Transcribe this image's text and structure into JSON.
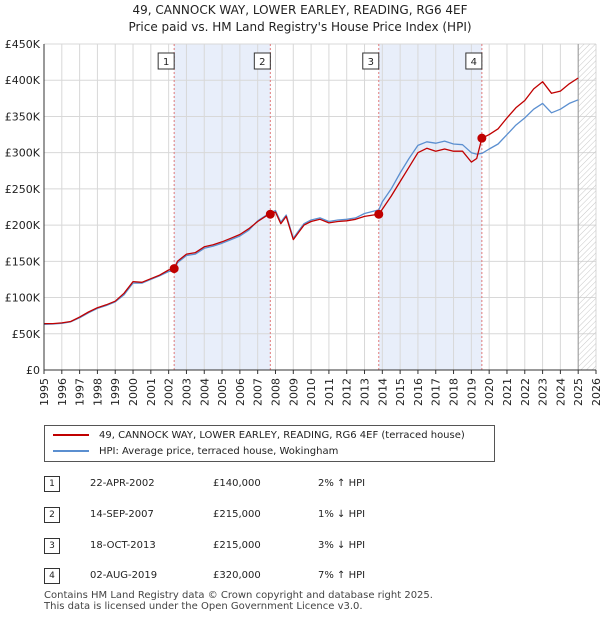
{
  "title_line1": "49, CANNOCK WAY, LOWER EARLEY, READING, RG6 4EF",
  "title_line2": "Price paid vs. HM Land Registry's House Price Index (HPI)",
  "legend": {
    "property": "49, CANNOCK WAY, LOWER EARLEY, READING, RG6 4EF (terraced house)",
    "hpi": "HPI: Average price, terraced house, Wokingham"
  },
  "colors": {
    "property": "#c00000",
    "hpi": "#5b8fd0",
    "shade": "#e8eefa",
    "grid": "#d8d8d8",
    "sale_line": "#e07a7a"
  },
  "transactions": [
    {
      "id": "1",
      "date": "22-APR-2002",
      "price": "£140,000",
      "hpi": "2% ↑ HPI"
    },
    {
      "id": "2",
      "date": "14-SEP-2007",
      "price": "£215,000",
      "hpi": "1% ↓ HPI"
    },
    {
      "id": "3",
      "date": "18-OCT-2013",
      "price": "£215,000",
      "hpi": "3% ↓ HPI"
    },
    {
      "id": "4",
      "date": "02-AUG-2019",
      "price": "£320,000",
      "hpi": "7% ↑ HPI"
    }
  ],
  "footer": {
    "line1": "Contains HM Land Registry data © Crown copyright and database right 2025.",
    "line2": "This data is licensed under the Open Government Licence v3.0."
  },
  "chart_data": {
    "type": "line",
    "title": "49, CANNOCK WAY, LOWER EARLEY, READING, RG6 4EF — Price paid vs. HM Land Registry's House Price Index (HPI)",
    "xlabel": "",
    "ylabel": "",
    "xlim": [
      1995,
      2026
    ],
    "ylim": [
      0,
      450000
    ],
    "y_ticks": [
      0,
      50000,
      100000,
      150000,
      200000,
      250000,
      300000,
      350000,
      400000,
      450000
    ],
    "y_tick_labels": [
      "£0",
      "£50K",
      "£100K",
      "£150K",
      "£200K",
      "£250K",
      "£300K",
      "£350K",
      "£400K",
      "£450K"
    ],
    "x_ticks": [
      1995,
      1996,
      1997,
      1998,
      1999,
      2000,
      2001,
      2002,
      2003,
      2004,
      2005,
      2006,
      2007,
      2008,
      2009,
      2010,
      2011,
      2012,
      2013,
      2014,
      2015,
      2016,
      2017,
      2018,
      2019,
      2020,
      2021,
      2022,
      2023,
      2024,
      2025,
      2026
    ],
    "x_tick_labels": [
      "1995",
      "1996",
      "1997",
      "1998",
      "1999",
      "2000",
      "2001",
      "2002",
      "2003",
      "2004",
      "2005",
      "2006",
      "2007",
      "2008",
      "2009",
      "2010",
      "2011",
      "2012",
      "2013",
      "2014",
      "2015",
      "2016",
      "2017",
      "2018",
      "2019",
      "2020",
      "2021",
      "2022",
      "2023",
      "2024",
      "2025",
      "2026"
    ],
    "shaded_ranges": [
      [
        2002.31,
        2007.71
      ],
      [
        2013.8,
        2019.59
      ]
    ],
    "hatched_after": 2025.0,
    "sales": [
      {
        "label": "1",
        "x": 2002.31,
        "y": 140000
      },
      {
        "label": "2",
        "x": 2007.71,
        "y": 215000
      },
      {
        "label": "3",
        "x": 2013.8,
        "y": 215000
      },
      {
        "label": "4",
        "x": 2019.59,
        "y": 320000
      }
    ],
    "series": [
      {
        "name": "49, CANNOCK WAY, LOWER EARLEY, READING, RG6 4EF (terraced house)",
        "color": "#c00000",
        "x": [
          1995.0,
          1995.5,
          1996.0,
          1996.5,
          1997.0,
          1997.5,
          1998.0,
          1998.5,
          1999.0,
          1999.5,
          2000.0,
          2000.5,
          2001.0,
          2001.5,
          2002.0,
          2002.31,
          2002.5,
          2003.0,
          2003.5,
          2004.0,
          2004.5,
          2005.0,
          2005.5,
          2006.0,
          2006.5,
          2007.0,
          2007.5,
          2007.71,
          2008.0,
          2008.3,
          2008.6,
          2009.0,
          2009.3,
          2009.6,
          2010.0,
          2010.5,
          2011.0,
          2011.5,
          2012.0,
          2012.5,
          2013.0,
          2013.5,
          2013.8,
          2014.0,
          2014.5,
          2015.0,
          2015.5,
          2016.0,
          2016.5,
          2017.0,
          2017.5,
          2018.0,
          2018.5,
          2019.0,
          2019.3,
          2019.59,
          2020.0,
          2020.5,
          2021.0,
          2021.5,
          2022.0,
          2022.5,
          2023.0,
          2023.5,
          2024.0,
          2024.5,
          2025.0
        ],
        "y": [
          64000,
          64000,
          65000,
          67000,
          73000,
          80000,
          86000,
          90000,
          95000,
          106000,
          122000,
          121000,
          126000,
          131000,
          138000,
          140000,
          150000,
          160000,
          162000,
          170000,
          173000,
          177000,
          182000,
          187000,
          195000,
          205000,
          213000,
          215000,
          218000,
          202000,
          212000,
          180000,
          190000,
          200000,
          205000,
          208000,
          203000,
          205000,
          206000,
          208000,
          212000,
          214000,
          215000,
          222000,
          240000,
          260000,
          280000,
          300000,
          306000,
          302000,
          305000,
          302000,
          302000,
          287000,
          292000,
          320000,
          325000,
          333000,
          348000,
          362000,
          372000,
          388000,
          398000,
          382000,
          385000,
          395000,
          403000
        ]
      },
      {
        "name": "HPI: Average price, terraced house, Wokingham",
        "color": "#5b8fd0",
        "x": [
          1995.0,
          1995.5,
          1996.0,
          1996.5,
          1997.0,
          1997.5,
          1998.0,
          1998.5,
          1999.0,
          1999.5,
          2000.0,
          2000.5,
          2001.0,
          2001.5,
          2002.0,
          2002.31,
          2002.5,
          2003.0,
          2003.5,
          2004.0,
          2004.5,
          2005.0,
          2005.5,
          2006.0,
          2006.5,
          2007.0,
          2007.5,
          2007.71,
          2008.0,
          2008.3,
          2008.6,
          2009.0,
          2009.3,
          2009.6,
          2010.0,
          2010.5,
          2011.0,
          2011.5,
          2012.0,
          2012.5,
          2013.0,
          2013.5,
          2013.8,
          2014.0,
          2014.5,
          2015.0,
          2015.5,
          2016.0,
          2016.5,
          2017.0,
          2017.5,
          2018.0,
          2018.5,
          2019.0,
          2019.3,
          2019.59,
          2020.0,
          2020.5,
          2021.0,
          2021.5,
          2022.0,
          2022.5,
          2023.0,
          2023.5,
          2024.0,
          2024.5,
          2025.0
        ],
        "y": [
          63000,
          63500,
          64500,
          66500,
          72000,
          79000,
          85000,
          89000,
          94000,
          104000,
          120000,
          120000,
          125000,
          130000,
          136000,
          137000,
          148000,
          158000,
          160000,
          168000,
          171000,
          175000,
          180000,
          185000,
          193000,
          206000,
          214000,
          217000,
          220000,
          204000,
          214000,
          182000,
          192000,
          202000,
          207000,
          210000,
          205000,
          207000,
          208000,
          210000,
          216000,
          219000,
          221000,
          232000,
          250000,
          272000,
          292000,
          310000,
          315000,
          313000,
          316000,
          312000,
          311000,
          300000,
          298000,
          299000,
          305000,
          312000,
          325000,
          338000,
          348000,
          360000,
          368000,
          355000,
          360000,
          368000,
          373000
        ]
      }
    ]
  }
}
